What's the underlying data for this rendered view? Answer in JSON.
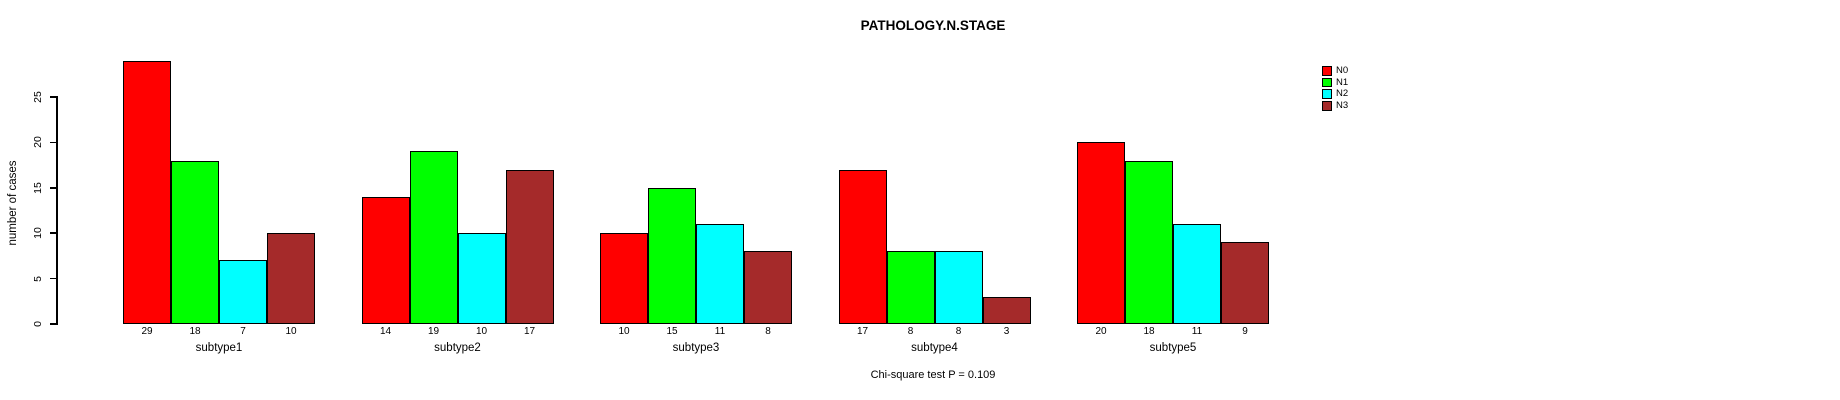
{
  "chart_data": {
    "type": "bar",
    "title": "PATHOLOGY.N.STAGE",
    "ylabel": "number of cases",
    "xlabel": "",
    "categories": [
      "subtype1",
      "subtype2",
      "subtype3",
      "subtype4",
      "subtype5"
    ],
    "series": [
      {
        "name": "N0",
        "color": "#ff0000",
        "values": [
          29,
          14,
          10,
          17,
          20
        ]
      },
      {
        "name": "N1",
        "color": "#00ff00",
        "values": [
          18,
          19,
          15,
          8,
          18
        ]
      },
      {
        "name": "N2",
        "color": "#00ffff",
        "values": [
          7,
          10,
          11,
          8,
          11
        ]
      },
      {
        "name": "N3",
        "color": "#a52a2a",
        "values": [
          10,
          17,
          8,
          3,
          9
        ]
      }
    ],
    "yticks": [
      0,
      5,
      10,
      15,
      20,
      25
    ],
    "ylim": [
      0,
      29
    ],
    "bar_value_labels_shown": true,
    "legend_position": "top-right",
    "grid": false,
    "annotation": "Chi-square test P = 0.109"
  },
  "colors": {
    "background": "#ffffff",
    "axis": "#000000",
    "bar_border": "#000000"
  }
}
